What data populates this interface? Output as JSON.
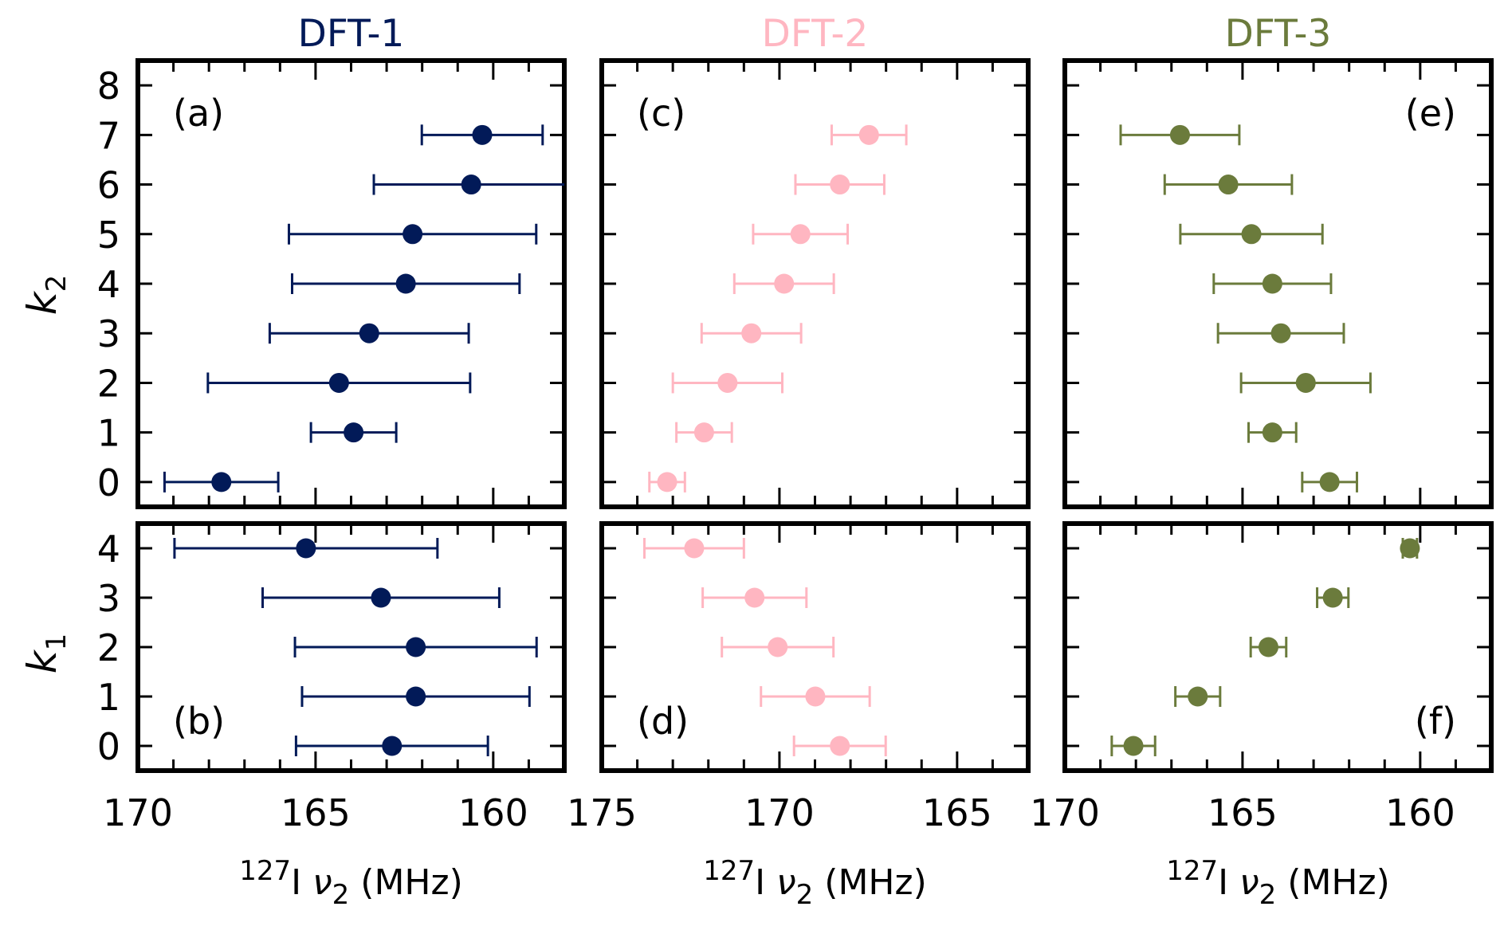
{
  "chart_data": {
    "type": "scatter",
    "description": "Horizontal error-bar plots of 127I nu2 (MHz) vs k2 (top row) and k1 (bottom row) for three DFT methods",
    "columns": [
      {
        "title": "DFT-1",
        "color": "#021a58",
        "xlim": [
          170,
          158
        ],
        "xticks": [
          170,
          165,
          160
        ],
        "xlabel_prefix": "127",
        "xlabel": "I ν2 (MHz)",
        "panels": [
          {
            "label": "(a)",
            "ylabel": "k2",
            "ylim": [
              -0.5,
              8.5
            ],
            "yticks": [
              0,
              1,
              2,
              3,
              4,
              5,
              6,
              7,
              8
            ],
            "points": [
              {
                "k": 0,
                "x": 167.65,
                "err": 1.6
              },
              {
                "k": 1,
                "x": 163.93,
                "err": 1.2
              },
              {
                "k": 2,
                "x": 164.34,
                "err": 3.69
              },
              {
                "k": 3,
                "x": 163.49,
                "err": 2.8
              },
              {
                "k": 4,
                "x": 162.46,
                "err": 3.2
              },
              {
                "k": 5,
                "x": 162.27,
                "err": 3.48
              },
              {
                "k": 6,
                "x": 160.62,
                "err": 2.74
              },
              {
                "k": 7,
                "x": 160.31,
                "err": 1.7
              }
            ]
          },
          {
            "label": "(b)",
            "ylabel": "k1",
            "ylim": [
              -0.5,
              4.5
            ],
            "yticks": [
              0,
              1,
              2,
              3,
              4
            ],
            "points": [
              {
                "k": 0,
                "x": 162.85,
                "err": 2.7
              },
              {
                "k": 1,
                "x": 162.18,
                "err": 3.2
              },
              {
                "k": 2,
                "x": 162.18,
                "err": 3.4
              },
              {
                "k": 3,
                "x": 163.16,
                "err": 3.33
              },
              {
                "k": 4,
                "x": 165.27,
                "err": 3.7
              }
            ]
          }
        ]
      },
      {
        "title": "DFT-2",
        "color": "#ffb6c1",
        "xlim": [
          175,
          163
        ],
        "xticks": [
          175,
          170,
          165
        ],
        "xlabel_prefix": "127",
        "xlabel": "I ν2 (MHz)",
        "panels": [
          {
            "label": "(c)",
            "ylabel": "k2",
            "ylim": [
              -0.5,
              8.5
            ],
            "yticks": [
              0,
              1,
              2,
              3,
              4,
              5,
              6,
              7,
              8
            ],
            "points": [
              {
                "k": 0,
                "x": 173.16,
                "err": 0.5
              },
              {
                "k": 1,
                "x": 172.12,
                "err": 0.78
              },
              {
                "k": 2,
                "x": 171.46,
                "err": 1.54
              },
              {
                "k": 3,
                "x": 170.79,
                "err": 1.4
              },
              {
                "k": 4,
                "x": 169.87,
                "err": 1.4
              },
              {
                "k": 5,
                "x": 169.41,
                "err": 1.33
              },
              {
                "k": 6,
                "x": 168.3,
                "err": 1.25
              },
              {
                "k": 7,
                "x": 167.48,
                "err": 1.05
              }
            ]
          },
          {
            "label": "(d)",
            "ylabel": "k1",
            "ylim": [
              -0.5,
              4.5
            ],
            "yticks": [
              0,
              1,
              2,
              3,
              4
            ],
            "points": [
              {
                "k": 0,
                "x": 168.3,
                "err": 1.29
              },
              {
                "k": 1,
                "x": 168.99,
                "err": 1.53
              },
              {
                "k": 2,
                "x": 170.05,
                "err": 1.57
              },
              {
                "k": 3,
                "x": 170.7,
                "err": 1.46
              },
              {
                "k": 4,
                "x": 172.4,
                "err": 1.4
              }
            ]
          }
        ]
      },
      {
        "title": "DFT-3",
        "color": "#6b7b3c",
        "xlim": [
          170,
          158
        ],
        "xticks": [
          170,
          165,
          160
        ],
        "xlabel_prefix": "127",
        "xlabel": "I ν2 (MHz)",
        "panels": [
          {
            "label": "(e)",
            "ylabel": "k2",
            "ylim": [
              -0.5,
              8.5
            ],
            "yticks": [
              0,
              1,
              2,
              3,
              4,
              5,
              6,
              7,
              8
            ],
            "points": [
              {
                "k": 0,
                "x": 162.55,
                "err": 0.77
              },
              {
                "k": 1,
                "x": 164.16,
                "err": 0.67
              },
              {
                "k": 2,
                "x": 163.22,
                "err": 1.82
              },
              {
                "k": 3,
                "x": 163.92,
                "err": 1.77
              },
              {
                "k": 4,
                "x": 164.16,
                "err": 1.65
              },
              {
                "k": 5,
                "x": 164.75,
                "err": 2.0
              },
              {
                "k": 6,
                "x": 165.4,
                "err": 1.79
              },
              {
                "k": 7,
                "x": 166.76,
                "err": 1.67
              }
            ]
          },
          {
            "label": "(f)",
            "ylabel": "k1",
            "ylim": [
              -0.5,
              4.5
            ],
            "yticks": [
              0,
              1,
              2,
              3,
              4
            ],
            "points": [
              {
                "k": 0,
                "x": 168.07,
                "err": 0.61
              },
              {
                "k": 1,
                "x": 166.26,
                "err": 0.63
              },
              {
                "k": 2,
                "x": 164.27,
                "err": 0.5
              },
              {
                "k": 3,
                "x": 162.46,
                "err": 0.44
              },
              {
                "k": 4,
                "x": 160.29,
                "err": 0.2
              }
            ]
          }
        ]
      }
    ],
    "row_ylabels": {
      "top": "k",
      "top_sub": "2",
      "bottom": "k",
      "bottom_sub": "1"
    },
    "grid": false,
    "legend": "none"
  }
}
